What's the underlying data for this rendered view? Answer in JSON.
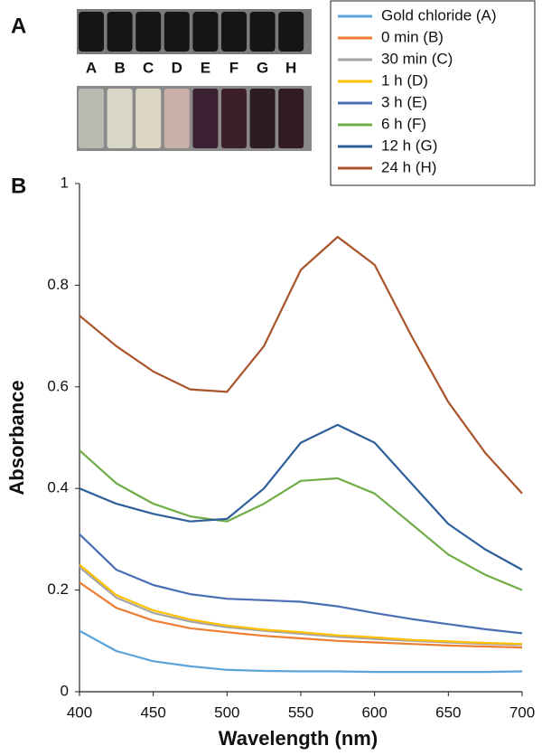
{
  "panel_labels": [
    "A",
    "B"
  ],
  "photo": {
    "labels": [
      "A",
      "B",
      "C",
      "D",
      "E",
      "F",
      "G",
      "H"
    ]
  },
  "chart_data": {
    "type": "line",
    "x_label": "Wavelength (nm)",
    "y_label": "Absorbance",
    "x": [
      400,
      425,
      450,
      475,
      500,
      525,
      550,
      575,
      600,
      625,
      650,
      675,
      700
    ],
    "series": [
      {
        "name": "Gold chloride (A)",
        "color": "#5ba3d9",
        "values": [
          0.12,
          0.08,
          0.06,
          0.05,
          0.043,
          0.041,
          0.04,
          0.04,
          0.039,
          0.039,
          0.039,
          0.039,
          0.04
        ]
      },
      {
        "name": "0 min (B)",
        "color": "#ed7d31",
        "values": [
          0.215,
          0.165,
          0.14,
          0.125,
          0.117,
          0.11,
          0.105,
          0.1,
          0.097,
          0.094,
          0.091,
          0.089,
          0.087
        ]
      },
      {
        "name": "30 min (C)",
        "color": "#a5a5a5",
        "values": [
          0.245,
          0.185,
          0.155,
          0.138,
          0.127,
          0.12,
          0.114,
          0.108,
          0.104,
          0.1,
          0.097,
          0.094,
          0.092
        ]
      },
      {
        "name": "1 h (D)",
        "color": "#ffc000",
        "values": [
          0.25,
          0.19,
          0.16,
          0.142,
          0.13,
          0.122,
          0.117,
          0.111,
          0.107,
          0.102,
          0.099,
          0.096,
          0.094
        ]
      },
      {
        "name": "3 h (E)",
        "color": "#4a6fb5",
        "values": [
          0.31,
          0.24,
          0.21,
          0.192,
          0.183,
          0.18,
          0.177,
          0.168,
          0.155,
          0.143,
          0.133,
          0.123,
          0.115
        ]
      },
      {
        "name": "6 h (F)",
        "color": "#70ad47",
        "values": [
          0.475,
          0.41,
          0.37,
          0.345,
          0.335,
          0.37,
          0.415,
          0.42,
          0.39,
          0.33,
          0.27,
          0.23,
          0.2
        ]
      },
      {
        "name": "12 h (G)",
        "color": "#2e5f9a",
        "values": [
          0.4,
          0.37,
          0.35,
          0.335,
          0.34,
          0.4,
          0.49,
          0.525,
          0.49,
          0.41,
          0.33,
          0.28,
          0.24
        ]
      },
      {
        "name": "24 h (H)",
        "color": "#a9542a",
        "values": [
          0.74,
          0.68,
          0.63,
          0.595,
          0.59,
          0.68,
          0.83,
          0.895,
          0.84,
          0.7,
          0.57,
          0.47,
          0.39
        ]
      }
    ],
    "xlim": [
      400,
      700
    ],
    "xticks": [
      400,
      450,
      500,
      550,
      600,
      650,
      700
    ],
    "ylim": [
      0,
      1
    ],
    "yticks": [
      0,
      0.2,
      0.4,
      0.6,
      0.8,
      1
    ],
    "grid": false
  }
}
